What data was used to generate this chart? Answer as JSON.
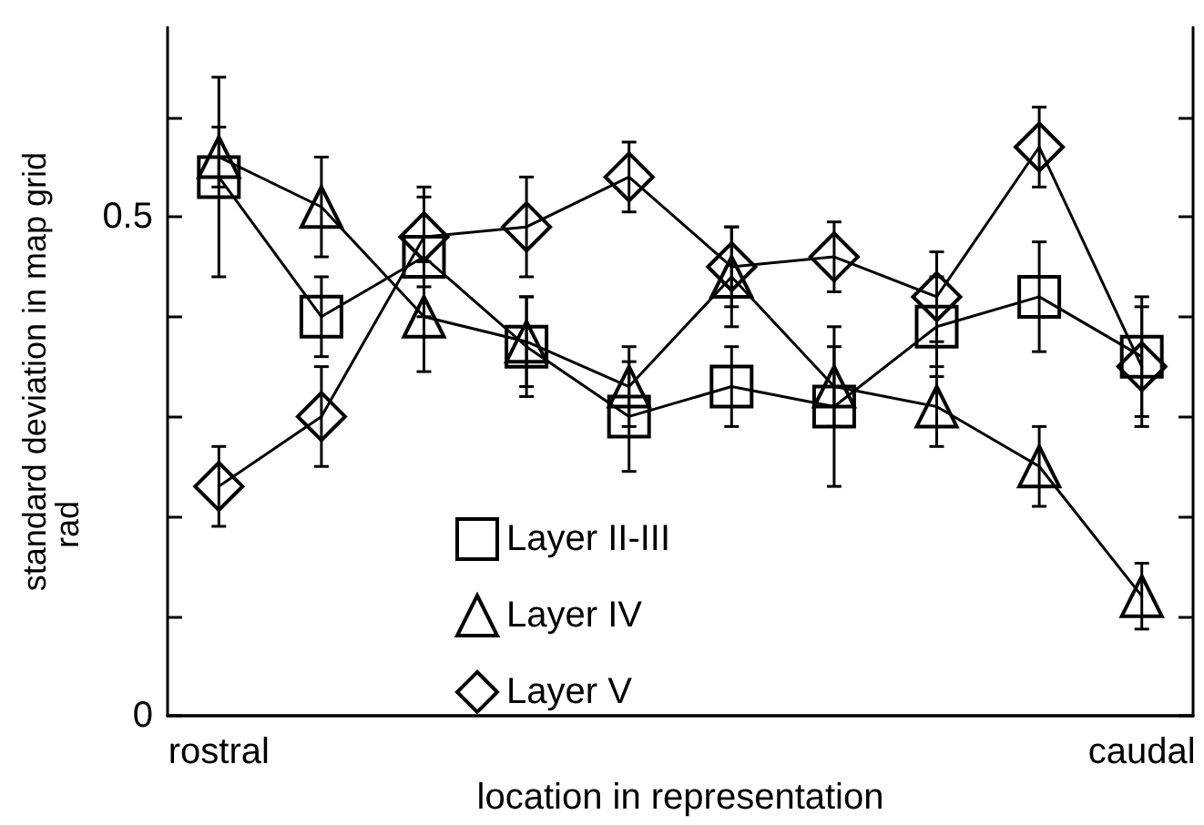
{
  "chart_data": {
    "type": "line",
    "xlabel": "location in representation",
    "ylabel": "standard deviation in map grid",
    "annotations": [
      "rad"
    ],
    "categories": [
      "rostral",
      null,
      null,
      null,
      null,
      null,
      null,
      null,
      null,
      "caudal"
    ],
    "series": [
      {
        "name": "Layer II-III",
        "color": "#000000",
        "marker": "square",
        "values": [
          0.54,
          0.4,
          0.46,
          0.37,
          0.3,
          0.33,
          0.31,
          0.39,
          0.42,
          0.36
        ],
        "errors": [
          0.1,
          0.04,
          0.06,
          0.05,
          0.055,
          0.04,
          0.08,
          0.05,
          0.055,
          0.06
        ]
      },
      {
        "name": "Layer IV",
        "color": "#000000",
        "marker": "triangle",
        "values": [
          0.56,
          0.51,
          0.4,
          0.375,
          0.33,
          0.44,
          0.33,
          0.31,
          0.25,
          0.12
        ],
        "errors": [
          0.03,
          0.05,
          0.055,
          0.045,
          0.04,
          0.05,
          0.04,
          0.04,
          0.04,
          0.033
        ]
      },
      {
        "name": "Layer V",
        "color": "#000000",
        "marker": "diamond",
        "values": [
          0.23,
          0.3,
          0.48,
          0.49,
          0.54,
          0.45,
          0.46,
          0.42,
          0.57,
          0.35
        ],
        "errors": [
          0.04,
          0.05,
          0.05,
          0.05,
          0.035,
          0.04,
          0.035,
          0.045,
          0.04,
          0.06
        ]
      }
    ],
    "ylim": [
      0,
      0.69
    ],
    "yticks": [
      0,
      {
        "value": 0.1,
        "label": null
      },
      {
        "value": 0.2,
        "label": null
      },
      {
        "value": 0.3,
        "label": null
      },
      {
        "value": 0.4,
        "label": null
      },
      0.5,
      {
        "value": 0.6,
        "label": null
      }
    ],
    "grid": false,
    "legend": "bottom left",
    "line_style": "solid"
  }
}
